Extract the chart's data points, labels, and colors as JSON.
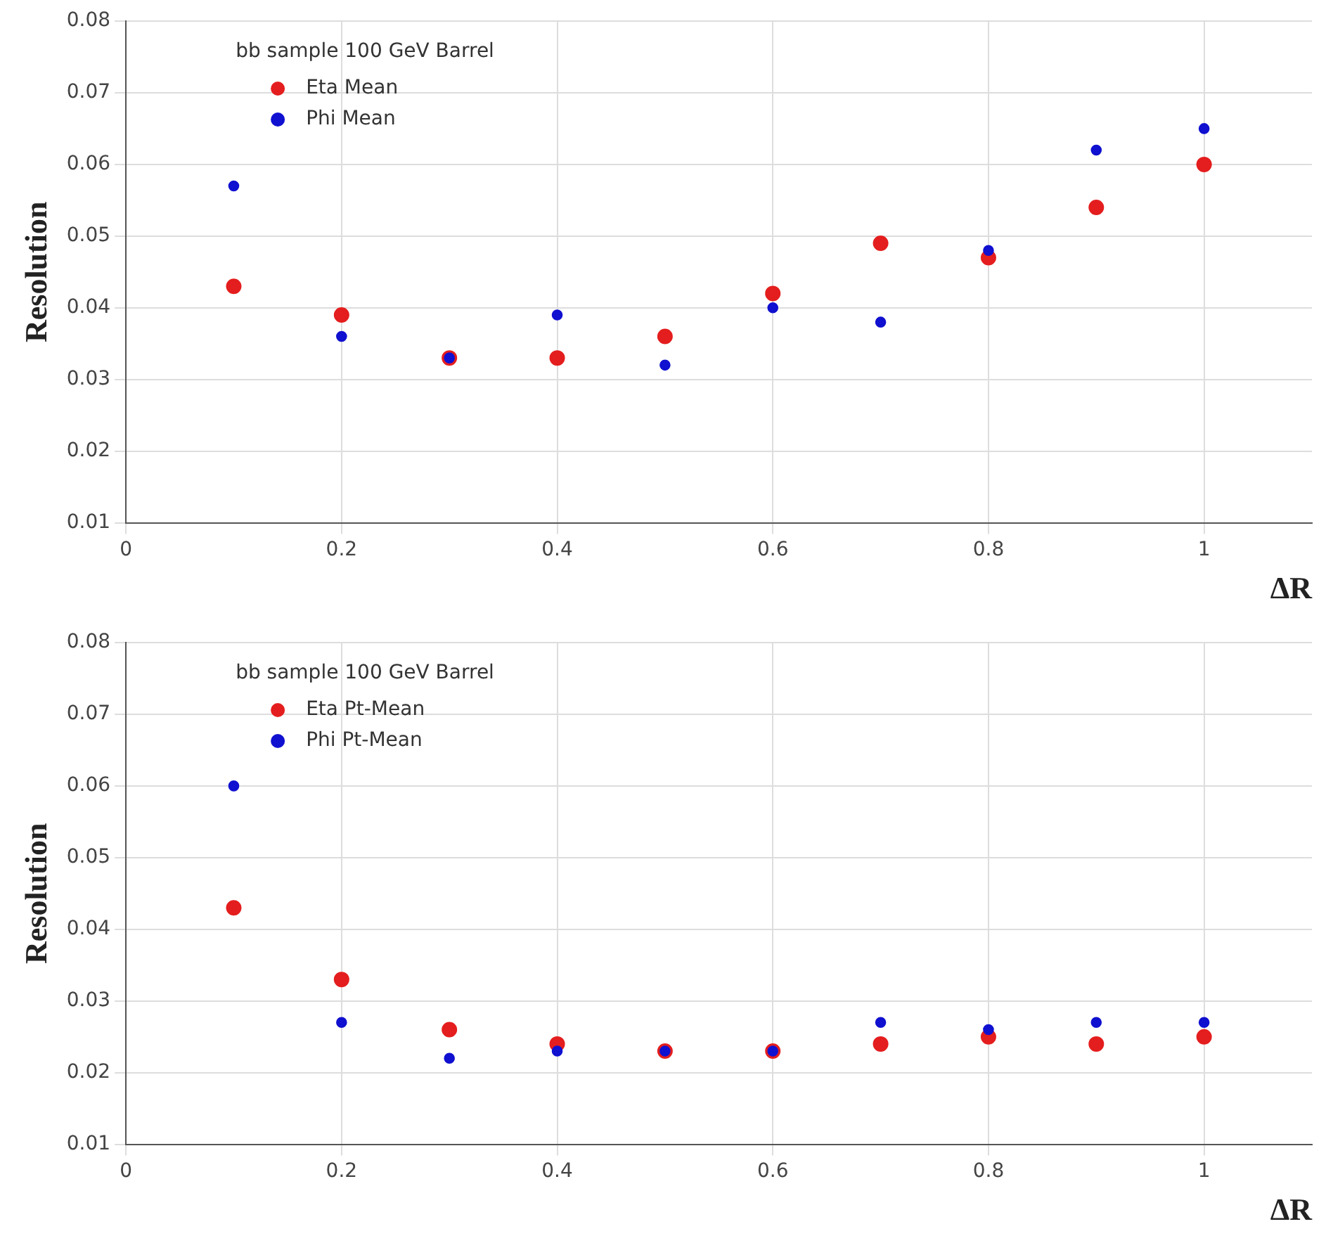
{
  "chart_data": [
    {
      "type": "scatter",
      "legend_title": "bb sample 100 GeV Barrel",
      "xlabel": "ΔR",
      "ylabel": "Resolution",
      "x": [
        0.1,
        0.2,
        0.3,
        0.4,
        0.5,
        0.6,
        0.7,
        0.8,
        0.9,
        1.0
      ],
      "series": [
        {
          "name": "Eta Mean",
          "color": "#e41e1e",
          "values": [
            0.043,
            0.039,
            0.033,
            0.033,
            0.036,
            0.042,
            0.049,
            0.047,
            0.054,
            0.06
          ]
        },
        {
          "name": "Phi Mean",
          "color": "#1010d0",
          "values": [
            0.057,
            0.036,
            0.033,
            0.039,
            0.032,
            0.04,
            0.038,
            0.048,
            0.062,
            0.065
          ]
        }
      ],
      "xlim": [
        0,
        1.1
      ],
      "xticks": [
        0,
        0.2,
        0.4,
        0.6,
        0.8,
        1
      ],
      "ylim": [
        0.01,
        0.08
      ],
      "yticks": [
        0.01,
        0.02,
        0.03,
        0.04,
        0.05,
        0.06,
        0.07,
        0.08
      ],
      "grid": true,
      "legend": "top left",
      "marker": "circle"
    },
    {
      "type": "scatter",
      "legend_title": "bb sample 100 GeV Barrel",
      "xlabel": "ΔR",
      "ylabel": "Resolution",
      "x": [
        0.1,
        0.2,
        0.3,
        0.4,
        0.5,
        0.6,
        0.7,
        0.8,
        0.9,
        1.0
      ],
      "series": [
        {
          "name": "Eta Pt-Mean",
          "color": "#e41e1e",
          "values": [
            0.043,
            0.033,
            0.026,
            0.024,
            0.023,
            0.023,
            0.024,
            0.025,
            0.024,
            0.025
          ]
        },
        {
          "name": "Phi Pt-Mean",
          "color": "#1010d0",
          "values": [
            0.06,
            0.027,
            0.022,
            0.023,
            0.023,
            0.023,
            0.027,
            0.026,
            0.027,
            0.027
          ]
        }
      ],
      "xlim": [
        0,
        1.1
      ],
      "xticks": [
        0,
        0.2,
        0.4,
        0.6,
        0.8,
        1
      ],
      "ylim": [
        0.01,
        0.08
      ],
      "yticks": [
        0.01,
        0.02,
        0.03,
        0.04,
        0.05,
        0.06,
        0.07,
        0.08
      ],
      "grid": true,
      "legend": "top left",
      "marker": "circle"
    }
  ]
}
